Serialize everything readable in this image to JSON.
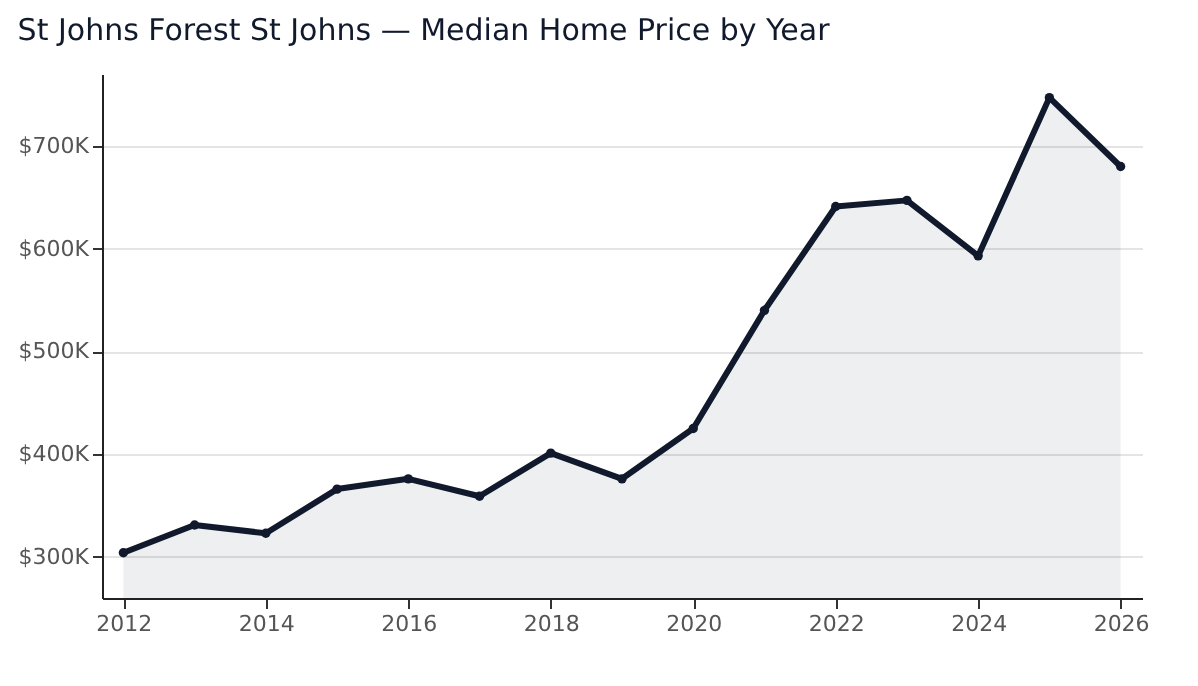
{
  "chart_data": {
    "type": "area",
    "title": "St Johns Forest St Johns — Median Home Price by Year",
    "x": [
      2012,
      2013,
      2014,
      2015,
      2016,
      2017,
      2018,
      2019,
      2020,
      2021,
      2022,
      2023,
      2024,
      2025,
      2026
    ],
    "series": [
      {
        "color": "#111a2c",
        "values": [
          304,
          331,
          323,
          366,
          376,
          359,
          401,
          376,
          425,
          540,
          641,
          647,
          593,
          747,
          680
        ]
      }
    ],
    "xlim": [
      2011.7,
      2026.3
    ],
    "xticks": [
      2012,
      2014,
      2016,
      2018,
      2020,
      2022,
      2024,
      2026
    ],
    "ylim": [
      260,
      770
    ],
    "yticks": [
      {
        "value": 300,
        "label": "$300K"
      },
      {
        "value": 400,
        "label": "$400K"
      },
      {
        "value": 500,
        "label": "$500K"
      },
      {
        "value": 600,
        "label": "$600K"
      },
      {
        "value": 700,
        "label": "$700K"
      }
    ],
    "grid": "y",
    "marker": "circle"
  }
}
